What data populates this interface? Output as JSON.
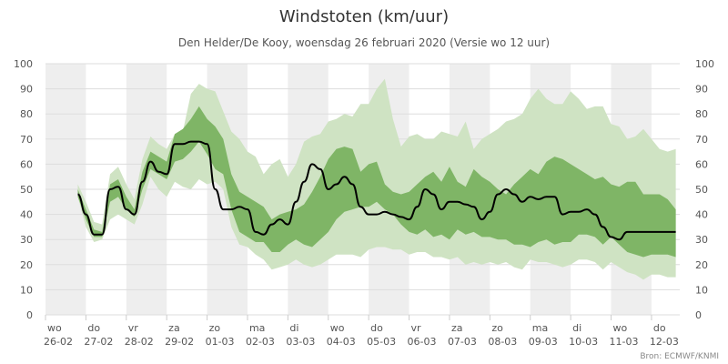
{
  "chart_data": {
    "type": "line",
    "title": "Windstoten (km/uur)",
    "subtitle": "Den Helder/De Kooy, woensdag 26 februari 2020 (Versie wo 12 uur)",
    "credit": "Bron: ECMWF/KNMI",
    "xlabel": "",
    "ylabel": "",
    "ylim": [
      0,
      100
    ],
    "y_ticks": [
      0,
      10,
      20,
      30,
      40,
      50,
      60,
      70,
      80,
      90,
      100
    ],
    "y_axis_both_sides": true,
    "grid": true,
    "x_day_labels": [
      {
        "day": "wo",
        "date": "26-02"
      },
      {
        "day": "do",
        "date": "27-02"
      },
      {
        "day": "vr",
        "date": "28-02"
      },
      {
        "day": "za",
        "date": "29-02"
      },
      {
        "day": "zo",
        "date": "01-03"
      },
      {
        "day": "ma",
        "date": "02-03"
      },
      {
        "day": "di",
        "date": "03-03"
      },
      {
        "day": "wo",
        "date": "04-03"
      },
      {
        "day": "do",
        "date": "05-03"
      },
      {
        "day": "vr",
        "date": "06-03"
      },
      {
        "day": "za",
        "date": "07-03"
      },
      {
        "day": "zo",
        "date": "08-03"
      },
      {
        "day": "ma",
        "date": "09-03"
      },
      {
        "day": "di",
        "date": "10-03"
      },
      {
        "day": "wo",
        "date": "11-03"
      },
      {
        "day": "do",
        "date": "12-03"
      }
    ],
    "x_unit": "days since 26-02 00:00",
    "x": [
      0.8,
      1.0,
      1.2,
      1.4,
      1.6,
      1.8,
      2.0,
      2.2,
      2.4,
      2.6,
      2.8,
      3.0,
      3.2,
      3.4,
      3.6,
      3.8,
      4.0,
      4.2,
      4.4,
      4.6,
      4.8,
      5.0,
      5.2,
      5.4,
      5.6,
      5.8,
      6.0,
      6.2,
      6.4,
      6.6,
      6.8,
      7.0,
      7.2,
      7.4,
      7.6,
      7.8,
      8.0,
      8.2,
      8.4,
      8.6,
      8.8,
      9.0,
      9.2,
      9.4,
      9.6,
      9.8,
      10.0,
      10.2,
      10.4,
      10.6,
      10.8,
      11.0,
      11.2,
      11.4,
      11.6,
      11.8,
      12.0,
      12.2,
      12.4,
      12.6,
      12.8,
      13.0,
      13.2,
      13.4,
      13.6,
      13.8,
      14.0,
      14.2,
      14.4,
      14.6,
      14.8,
      15.0,
      15.2,
      15.4,
      15.6
    ],
    "series": [
      {
        "role": "outer_band",
        "color": "#cfe3c3",
        "low": [
          47,
          35,
          29,
          30,
          38,
          40,
          38,
          36,
          44,
          55,
          50,
          47,
          53,
          51,
          50,
          54,
          52,
          53,
          50,
          35,
          28,
          27,
          24,
          22,
          18,
          19,
          20,
          22,
          20,
          19,
          20,
          22,
          24,
          24,
          24,
          23,
          26,
          27,
          27,
          26,
          26,
          24,
          25,
          25,
          23,
          23,
          22,
          23,
          20,
          21,
          20,
          21,
          20,
          21,
          19,
          18,
          22,
          21,
          21,
          20,
          19,
          20,
          22,
          22,
          21,
          18,
          21,
          19,
          17,
          16,
          14,
          16,
          16,
          15,
          15
        ],
        "high": [
          52,
          45,
          37,
          36,
          56,
          59,
          52,
          46,
          62,
          71,
          68,
          66,
          72,
          73,
          88,
          92,
          90,
          89,
          81,
          73,
          70,
          65,
          63,
          56,
          60,
          62,
          55,
          60,
          69,
          71,
          72,
          77,
          78,
          80,
          79,
          84,
          84,
          90,
          94,
          78,
          67,
          71,
          72,
          70,
          70,
          73,
          72,
          71,
          77,
          66,
          70,
          72,
          74,
          77,
          78,
          80,
          86,
          90,
          86,
          84,
          84,
          89,
          86,
          82,
          83,
          83,
          76,
          75,
          70,
          71,
          74,
          70,
          66,
          65,
          66
        ]
      },
      {
        "role": "inner_band",
        "color": "#7fb566",
        "low": [
          47,
          38,
          31,
          31,
          45,
          47,
          42,
          39,
          50,
          58,
          56,
          54,
          61,
          62,
          65,
          69,
          64,
          58,
          56,
          42,
          33,
          31,
          29,
          29,
          25,
          25,
          28,
          30,
          28,
          27,
          30,
          33,
          38,
          41,
          42,
          43,
          43,
          45,
          42,
          40,
          36,
          33,
          32,
          34,
          31,
          32,
          30,
          34,
          32,
          33,
          31,
          31,
          30,
          30,
          28,
          28,
          27,
          29,
          30,
          28,
          29,
          29,
          32,
          32,
          31,
          28,
          31,
          28,
          25,
          24,
          23,
          24,
          24,
          24,
          23
        ],
        "high": [
          50,
          42,
          34,
          33,
          52,
          54,
          47,
          42,
          57,
          65,
          63,
          61,
          72,
          74,
          78,
          83,
          78,
          75,
          70,
          56,
          49,
          47,
          45,
          43,
          38,
          40,
          41,
          42,
          44,
          49,
          55,
          62,
          66,
          67,
          66,
          57,
          60,
          61,
          52,
          49,
          48,
          49,
          52,
          55,
          57,
          53,
          59,
          53,
          51,
          58,
          55,
          53,
          50,
          48,
          52,
          55,
          58,
          56,
          61,
          63,
          62,
          60,
          58,
          56,
          54,
          55,
          52,
          51,
          53,
          53,
          48,
          48,
          48,
          46,
          42
        ]
      },
      {
        "role": "median",
        "color": "#000000",
        "values": [
          48,
          40,
          32,
          32,
          50,
          51,
          42,
          40,
          53,
          61,
          57,
          56,
          68,
          68,
          69,
          69,
          68,
          50,
          42,
          42,
          43,
          42,
          33,
          32,
          36,
          38,
          36,
          45,
          53,
          60,
          58,
          50,
          52,
          55,
          52,
          43,
          40,
          40,
          41,
          40,
          39,
          38,
          43,
          50,
          48,
          42,
          45,
          45,
          44,
          43,
          38,
          41,
          48,
          50,
          48,
          45,
          47,
          46,
          47,
          47,
          40,
          41,
          41,
          42,
          40,
          35,
          31,
          30,
          33,
          33,
          33,
          33,
          33,
          33,
          33
        ]
      }
    ]
  }
}
